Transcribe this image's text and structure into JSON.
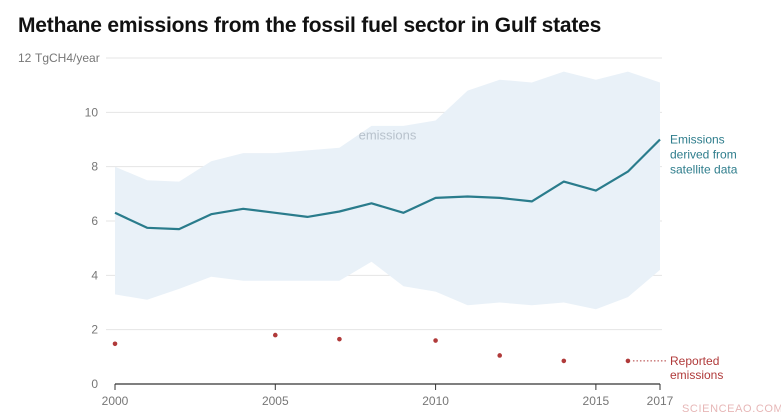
{
  "chart_data": {
    "type": "line",
    "title": "Methane emissions from the fossil fuel sector in Gulf states",
    "ylabel": "TgCH4/year",
    "xlabel": "",
    "ylim": [
      0,
      12
    ],
    "xlim": [
      2000,
      2017
    ],
    "grid": true,
    "y_ticks": [
      {
        "value": 0,
        "label": "0"
      },
      {
        "value": 2,
        "label": "2"
      },
      {
        "value": 4,
        "label": "4"
      },
      {
        "value": 6,
        "label": "6"
      },
      {
        "value": 8,
        "label": "8"
      },
      {
        "value": 10,
        "label": "10"
      },
      {
        "value": 12,
        "label": "12"
      }
    ],
    "x_ticks": [
      {
        "value": 2000,
        "label": "2000"
      },
      {
        "value": 2005,
        "label": "2005"
      },
      {
        "value": 2010,
        "label": "2010"
      },
      {
        "value": 2015,
        "label": "2015"
      },
      {
        "value": 2017,
        "label": "2017"
      }
    ],
    "band": {
      "name": "emissions",
      "x": [
        2000,
        2001,
        2002,
        2003,
        2004,
        2005,
        2006,
        2007,
        2008,
        2009,
        2010,
        2011,
        2012,
        2013,
        2014,
        2015,
        2016,
        2017
      ],
      "upper": [
        8.0,
        7.5,
        7.45,
        8.2,
        8.5,
        8.5,
        8.6,
        8.7,
        9.5,
        9.5,
        9.7,
        10.8,
        11.2,
        11.1,
        11.5,
        11.2,
        11.5,
        11.1
      ],
      "lower": [
        3.3,
        3.1,
        3.5,
        3.95,
        3.8,
        3.8,
        3.8,
        3.8,
        4.5,
        3.6,
        3.4,
        2.9,
        3.0,
        2.9,
        3.0,
        2.75,
        3.2,
        4.2
      ]
    },
    "series": [
      {
        "name": "Emissions derived from satellite data",
        "label_lines": [
          "Emissions",
          "derived from",
          "satellite data"
        ],
        "x": [
          2000,
          2001,
          2002,
          2003,
          2004,
          2005,
          2006,
          2007,
          2008,
          2009,
          2010,
          2011,
          2012,
          2013,
          2014,
          2015,
          2016,
          2017
        ],
        "values": [
          6.3,
          5.75,
          5.7,
          6.25,
          6.45,
          6.3,
          6.15,
          6.35,
          6.65,
          6.3,
          6.85,
          6.9,
          6.85,
          6.72,
          7.45,
          7.12,
          7.82,
          9.0
        ]
      }
    ],
    "reported": {
      "name": "Reported emissions",
      "label_lines": [
        "Reported",
        "emissions"
      ],
      "x": [
        2000,
        2005,
        2007,
        2010,
        2012,
        2014,
        2016
      ],
      "values": [
        1.48,
        1.8,
        1.65,
        1.6,
        1.05,
        0.85,
        0.85
      ]
    },
    "colors": {
      "band": "#e9f1f8",
      "line": "#2a7c8c",
      "reported": "#b03a3a",
      "grid": "#e4e4e4",
      "axis": "#333333"
    }
  },
  "watermark": "SCIENCEAO.COM"
}
